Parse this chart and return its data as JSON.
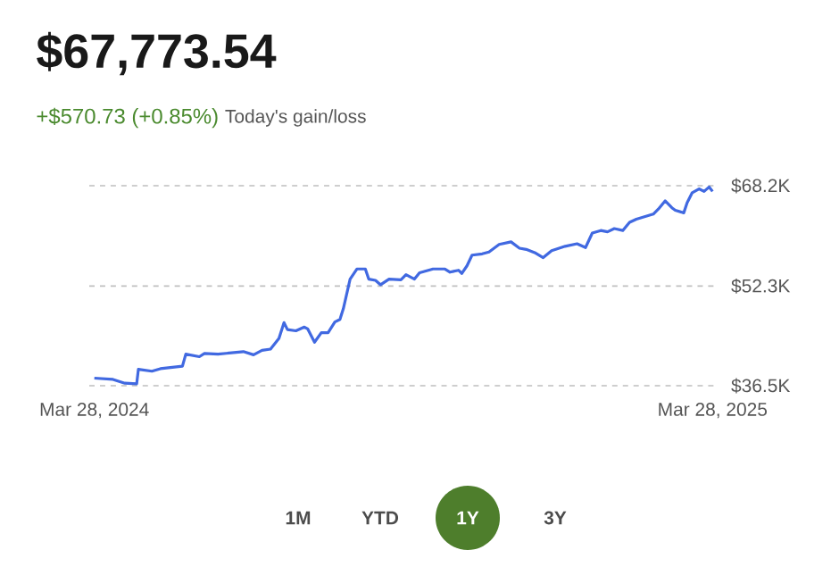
{
  "chart_data": {
    "type": "line",
    "title": "$67,773.54",
    "subtitle": "+$570.73 (+0.85%)",
    "annotations": [
      "Today's gain/loss",
      "1M",
      "YTD",
      "1Y",
      "3Y"
    ],
    "x": [
      "2024-03-28",
      "2024-04-08",
      "2024-04-15",
      "2024-04-22",
      "2024-04-23",
      "2024-05-01",
      "2024-05-06",
      "2024-05-19",
      "2024-05-21",
      "2024-05-29",
      "2024-06-01",
      "2024-06-09",
      "2024-06-24",
      "2024-06-30",
      "2024-07-05",
      "2024-07-10",
      "2024-07-15",
      "2024-07-18",
      "2024-07-20",
      "2024-07-25",
      "2024-07-30",
      "2024-08-01",
      "2024-08-05",
      "2024-08-09",
      "2024-08-13",
      "2024-08-17",
      "2024-08-20",
      "2024-08-22",
      "2024-08-26",
      "2024-08-30",
      "2024-09-04",
      "2024-09-06",
      "2024-09-10",
      "2024-09-13",
      "2024-09-18",
      "2024-09-25",
      "2024-09-28",
      "2024-10-03",
      "2024-10-06",
      "2024-10-14",
      "2024-10-21",
      "2024-10-24",
      "2024-10-29",
      "2024-10-31",
      "2024-11-03",
      "2024-11-06",
      "2024-11-12",
      "2024-11-16",
      "2024-11-22",
      "2024-11-29",
      "2024-12-04",
      "2024-12-08",
      "2024-12-13",
      "2024-12-18",
      "2024-12-23",
      "2024-12-31",
      "2025-01-07",
      "2025-01-12",
      "2025-01-16",
      "2025-01-21",
      "2025-01-25",
      "2025-01-29",
      "2025-02-03",
      "2025-02-07",
      "2025-02-11",
      "2025-02-21",
      "2025-02-24",
      "2025-02-28",
      "2025-03-04",
      "2025-03-06",
      "2025-03-11",
      "2025-03-13",
      "2025-03-16",
      "2025-03-20",
      "2025-03-23",
      "2025-03-26",
      "2025-03-28"
    ],
    "series": [
      {
        "color": "#4169e1",
        "values": [
          37.7,
          37.5,
          36.9,
          36.8,
          39.1,
          38.8,
          39.2,
          39.6,
          41.5,
          41.1,
          41.6,
          41.5,
          41.9,
          41.4,
          42.1,
          42.3,
          44.0,
          46.5,
          45.4,
          45.2,
          45.8,
          45.5,
          43.4,
          44.9,
          44.9,
          46.6,
          47.0,
          48.7,
          53.4,
          55.0,
          55.0,
          53.4,
          53.2,
          52.5,
          53.4,
          53.3,
          54.1,
          53.4,
          54.4,
          55.0,
          55.0,
          54.5,
          54.8,
          54.3,
          55.5,
          57.2,
          57.4,
          57.7,
          58.9,
          59.3,
          58.3,
          58.1,
          57.6,
          56.8,
          57.9,
          58.6,
          59.0,
          58.4,
          60.7,
          61.1,
          60.9,
          61.4,
          61.1,
          62.4,
          62.9,
          63.7,
          64.5,
          65.8,
          64.7,
          64.3,
          63.9,
          65.5,
          67.1,
          67.7,
          67.3,
          68.0,
          67.3
        ]
      }
    ],
    "xlim": [
      "2024-03-25",
      "2025-03-31"
    ],
    "xticks": [
      {
        "value": "2024-03-28",
        "label": "Mar 28, 2024"
      },
      {
        "value": "2025-03-28",
        "label": "Mar 28, 2025"
      }
    ],
    "ylim": [
      36.5,
      68.2
    ],
    "yticks": [
      {
        "value": 36.5,
        "label": "$36.5K"
      },
      {
        "value": 52.3,
        "label": "$52.3K"
      },
      {
        "value": 68.2,
        "label": "$68.2K"
      }
    ],
    "grid": "y",
    "marker": "none",
    "line_style": "solid"
  }
}
